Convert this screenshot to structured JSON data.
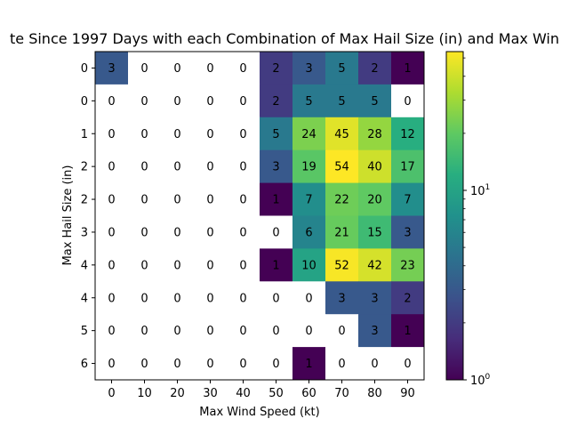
{
  "chart_data": {
    "type": "heatmap",
    "title": "te Since 1997 Days with each Combination of Max Hail Size (in) and Max Win",
    "xlabel": "Max Wind Speed (kt)",
    "ylabel": "Max Hail Size (in)",
    "x_ticks": [
      "0",
      "10",
      "20",
      "30",
      "40",
      "50",
      "60",
      "70",
      "80",
      "90"
    ],
    "y_ticks": [
      "0",
      "0",
      "1",
      "2",
      "2",
      "3",
      "4",
      "4",
      "5",
      "6"
    ],
    "values": [
      [
        3,
        0,
        0,
        0,
        0,
        2,
        3,
        5,
        2,
        1
      ],
      [
        0,
        0,
        0,
        0,
        0,
        2,
        5,
        5,
        5,
        0
      ],
      [
        0,
        0,
        0,
        0,
        0,
        5,
        24,
        45,
        28,
        12
      ],
      [
        0,
        0,
        0,
        0,
        0,
        3,
        19,
        54,
        40,
        17
      ],
      [
        0,
        0,
        0,
        0,
        0,
        1,
        7,
        22,
        20,
        7
      ],
      [
        0,
        0,
        0,
        0,
        0,
        0,
        6,
        21,
        15,
        3
      ],
      [
        0,
        0,
        0,
        0,
        0,
        1,
        10,
        52,
        42,
        23
      ],
      [
        0,
        0,
        0,
        0,
        0,
        0,
        0,
        3,
        3,
        2
      ],
      [
        0,
        0,
        0,
        0,
        0,
        0,
        0,
        0,
        3,
        1
      ],
      [
        0,
        0,
        0,
        0,
        0,
        0,
        1,
        0,
        0,
        0
      ]
    ],
    "color_scale": "log",
    "colormap": "viridis",
    "zero_color": "#ffffff",
    "vmin": 1,
    "vmax": 54,
    "colorbar_ticks": [
      {
        "value": 1,
        "label": "10",
        "sup": "0"
      },
      {
        "value": 10,
        "label": "10",
        "sup": "1"
      }
    ],
    "grid": false
  }
}
